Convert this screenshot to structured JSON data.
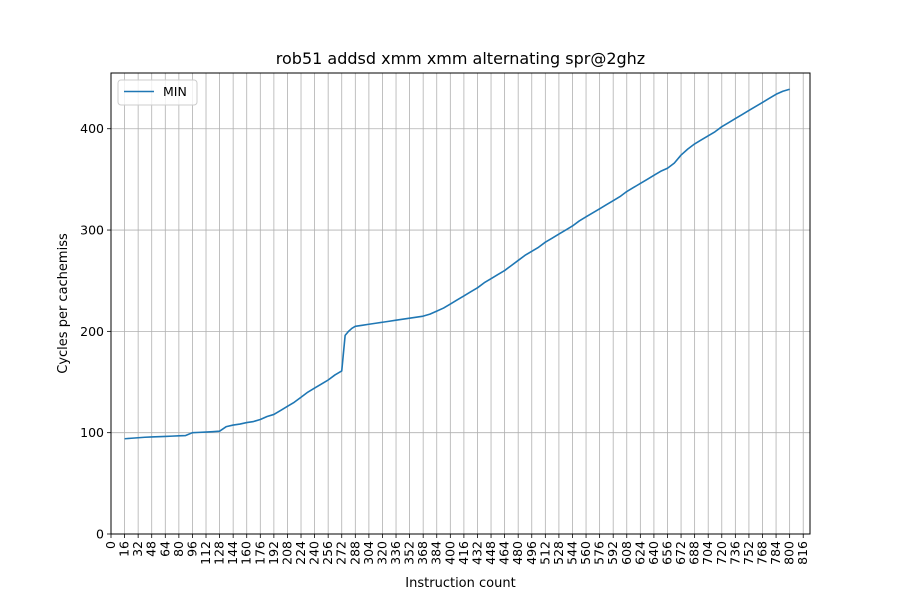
{
  "chart_data": {
    "type": "line",
    "title": "rob51 addsd xmm xmm alternating spr@2ghz",
    "xlabel": "Instruction count",
    "ylabel": "Cycles per cachemiss",
    "xlim": [
      0,
      824
    ],
    "ylim": [
      0,
      455
    ],
    "x_ticks": [
      0,
      16,
      32,
      48,
      64,
      80,
      96,
      112,
      128,
      144,
      160,
      176,
      192,
      208,
      224,
      240,
      256,
      272,
      288,
      304,
      320,
      336,
      352,
      368,
      384,
      400,
      416,
      432,
      448,
      464,
      480,
      496,
      512,
      528,
      544,
      560,
      576,
      592,
      608,
      624,
      640,
      656,
      672,
      688,
      704,
      720,
      736,
      752,
      768,
      784,
      800,
      816
    ],
    "y_ticks": [
      0,
      100,
      200,
      300,
      400
    ],
    "grid": true,
    "legend_position": "top-left",
    "series": [
      {
        "name": "MIN",
        "color": "#1f77b4",
        "x": [
          16,
          24,
          32,
          40,
          48,
          56,
          64,
          72,
          80,
          88,
          96,
          104,
          112,
          120,
          128,
          136,
          144,
          152,
          160,
          168,
          176,
          184,
          192,
          200,
          208,
          216,
          224,
          232,
          240,
          248,
          256,
          264,
          272,
          276,
          280,
          284,
          288,
          296,
          304,
          312,
          320,
          328,
          336,
          344,
          352,
          360,
          368,
          376,
          384,
          392,
          400,
          408,
          416,
          424,
          432,
          440,
          448,
          456,
          464,
          472,
          480,
          488,
          496,
          504,
          512,
          520,
          528,
          536,
          544,
          552,
          560,
          568,
          576,
          584,
          592,
          600,
          608,
          616,
          624,
          632,
          640,
          648,
          656,
          664,
          672,
          680,
          688,
          696,
          704,
          712,
          720,
          728,
          736,
          744,
          752,
          760,
          768,
          776,
          784,
          792,
          800
        ],
        "values": [
          94,
          94.5,
          95,
          95.5,
          95.8,
          96,
          96.3,
          96.6,
          96.9,
          97.2,
          100,
          100.3,
          100.6,
          101,
          101.5,
          106,
          107.5,
          108.5,
          110,
          111,
          113,
          116,
          118,
          122,
          126,
          130,
          135,
          140,
          144,
          148,
          152,
          157,
          161,
          196,
          200,
          203,
          205,
          206,
          207,
          208,
          209,
          210,
          211,
          212,
          213,
          214,
          215,
          217,
          220,
          223,
          227,
          231,
          235,
          239,
          243,
          248,
          252,
          256,
          260,
          265,
          270,
          275,
          279,
          283,
          288,
          292,
          296,
          300,
          304,
          309,
          313,
          317,
          321,
          325,
          329,
          333,
          338,
          342,
          346,
          350,
          354,
          358,
          361,
          366,
          374,
          380,
          385,
          389,
          393,
          397,
          402,
          406,
          410,
          414,
          418,
          422,
          426,
          430,
          434,
          437,
          439
        ]
      }
    ]
  }
}
